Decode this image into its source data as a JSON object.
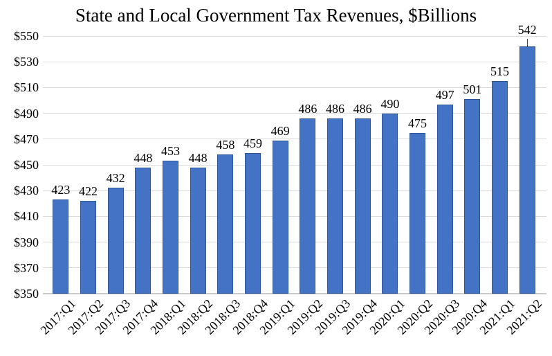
{
  "chart_data": {
    "type": "bar",
    "title": "State and Local Government Tax Revenues, $Billions",
    "categories": [
      "2017:Q1",
      "2017:Q2",
      "2017:Q3",
      "2017:Q4",
      "2018:Q1",
      "2018:Q2",
      "2018:Q3",
      "2018:Q4",
      "2019:Q1",
      "2019:Q2",
      "2019:Q3",
      "2019:Q4",
      "2020:Q1",
      "2020:Q2",
      "2020:Q3",
      "2020:Q4",
      "2021:Q1",
      "2021:Q2"
    ],
    "values": [
      423,
      422,
      432,
      448,
      453,
      448,
      458,
      459,
      469,
      486,
      486,
      486,
      490,
      475,
      497,
      501,
      515,
      542
    ],
    "data_labels": [
      "423",
      "422",
      "432",
      "448",
      "453",
      "448",
      "458",
      "459",
      "469",
      "486",
      "486",
      "486",
      "490",
      "475",
      "497",
      "501",
      "515",
      "542"
    ],
    "xlabel": "",
    "ylabel": "",
    "ylim": [
      350,
      550
    ],
    "ytick_step": 20,
    "ytick_labels": [
      "$350",
      "$370",
      "$390",
      "$410",
      "$430",
      "$450",
      "$470",
      "$490",
      "$510",
      "$530",
      "$550"
    ],
    "grid": true,
    "legend": "none",
    "last_label_has_leader_line": true,
    "colors": {
      "bar_fill": "#4472C4",
      "bar_border": "#2E5597",
      "gridline": "#D9D9D9",
      "baseline": "#C9C9C9",
      "text": "#000000"
    }
  }
}
